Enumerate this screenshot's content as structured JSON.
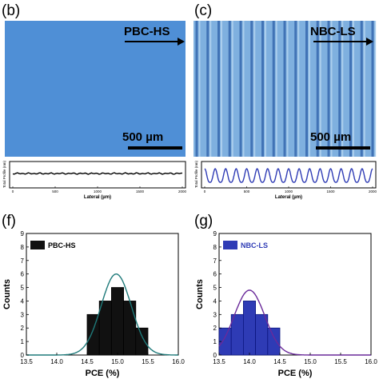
{
  "panels": {
    "b": {
      "letter": "(b)",
      "label": "PBC-HS",
      "scalebar": "500 µm",
      "profile_ylabel": "Total Profile (nm)",
      "profile_xlabel": "Lateral (µm)",
      "profile_ticks": [
        "0",
        "500",
        "1000",
        "1500",
        "2000"
      ]
    },
    "c": {
      "letter": "(c)",
      "label": "NBC-LS",
      "scalebar": "500 µm",
      "profile_ylabel": "Total Profile (nm)",
      "profile_xlabel": "Lateral (µm)",
      "profile_ticks": [
        "0",
        "500",
        "1000",
        "1500",
        "2000"
      ]
    },
    "f": {
      "letter": "(f)",
      "legend": "PBC-HS",
      "ylabel": "Counts",
      "xlabel": "PCE (%)",
      "yticks": [
        "0",
        "1",
        "2",
        "3",
        "4",
        "5",
        "6",
        "7",
        "8",
        "9"
      ],
      "xticks": [
        "13.5",
        "14.0",
        "14.5",
        "15.0",
        "15.5",
        "16.0"
      ]
    },
    "g": {
      "letter": "(g)",
      "legend": "NBC-LS",
      "ylabel": "Counts",
      "xlabel": "PCE (%)",
      "yticks": [
        "0",
        "1",
        "2",
        "3",
        "4",
        "5",
        "6",
        "7",
        "8",
        "9"
      ],
      "xticks": [
        "13.5",
        "14.0",
        "14.5",
        "15.0",
        "15.5",
        "16.0"
      ]
    }
  },
  "colors": {
    "image_blue": "#4f8fd6",
    "stripe_blue": "#7fb0df",
    "bar_black": "#111111",
    "fit_teal": "#1f7a7a",
    "bar_blue": "#2e3bb5",
    "fit_purple": "#6a2a9a"
  },
  "chart_data": [
    {
      "type": "bar",
      "title": "(f)",
      "series": [
        {
          "name": "PBC-HS",
          "x": [
            14.6,
            14.8,
            15.0,
            15.2,
            15.4
          ],
          "values": [
            3,
            4,
            5,
            4,
            2
          ]
        }
      ],
      "fit": "gaussian",
      "xlabel": "PCE (%)",
      "ylabel": "Counts",
      "xlim": [
        13.5,
        16.0
      ],
      "ylim": [
        0,
        9
      ],
      "bin_width": 0.2,
      "legend": "top-left"
    },
    {
      "type": "bar",
      "title": "(g)",
      "series": [
        {
          "name": "NBC-LS",
          "x": [
            13.6,
            13.8,
            14.0,
            14.2,
            14.4
          ],
          "values": [
            2,
            3,
            4,
            3,
            2
          ]
        }
      ],
      "fit": "gaussian",
      "xlabel": "PCE (%)",
      "ylabel": "Counts",
      "xlim": [
        13.5,
        16.0
      ],
      "ylim": [
        0,
        9
      ],
      "bin_width": 0.2,
      "legend": "top-left"
    }
  ]
}
